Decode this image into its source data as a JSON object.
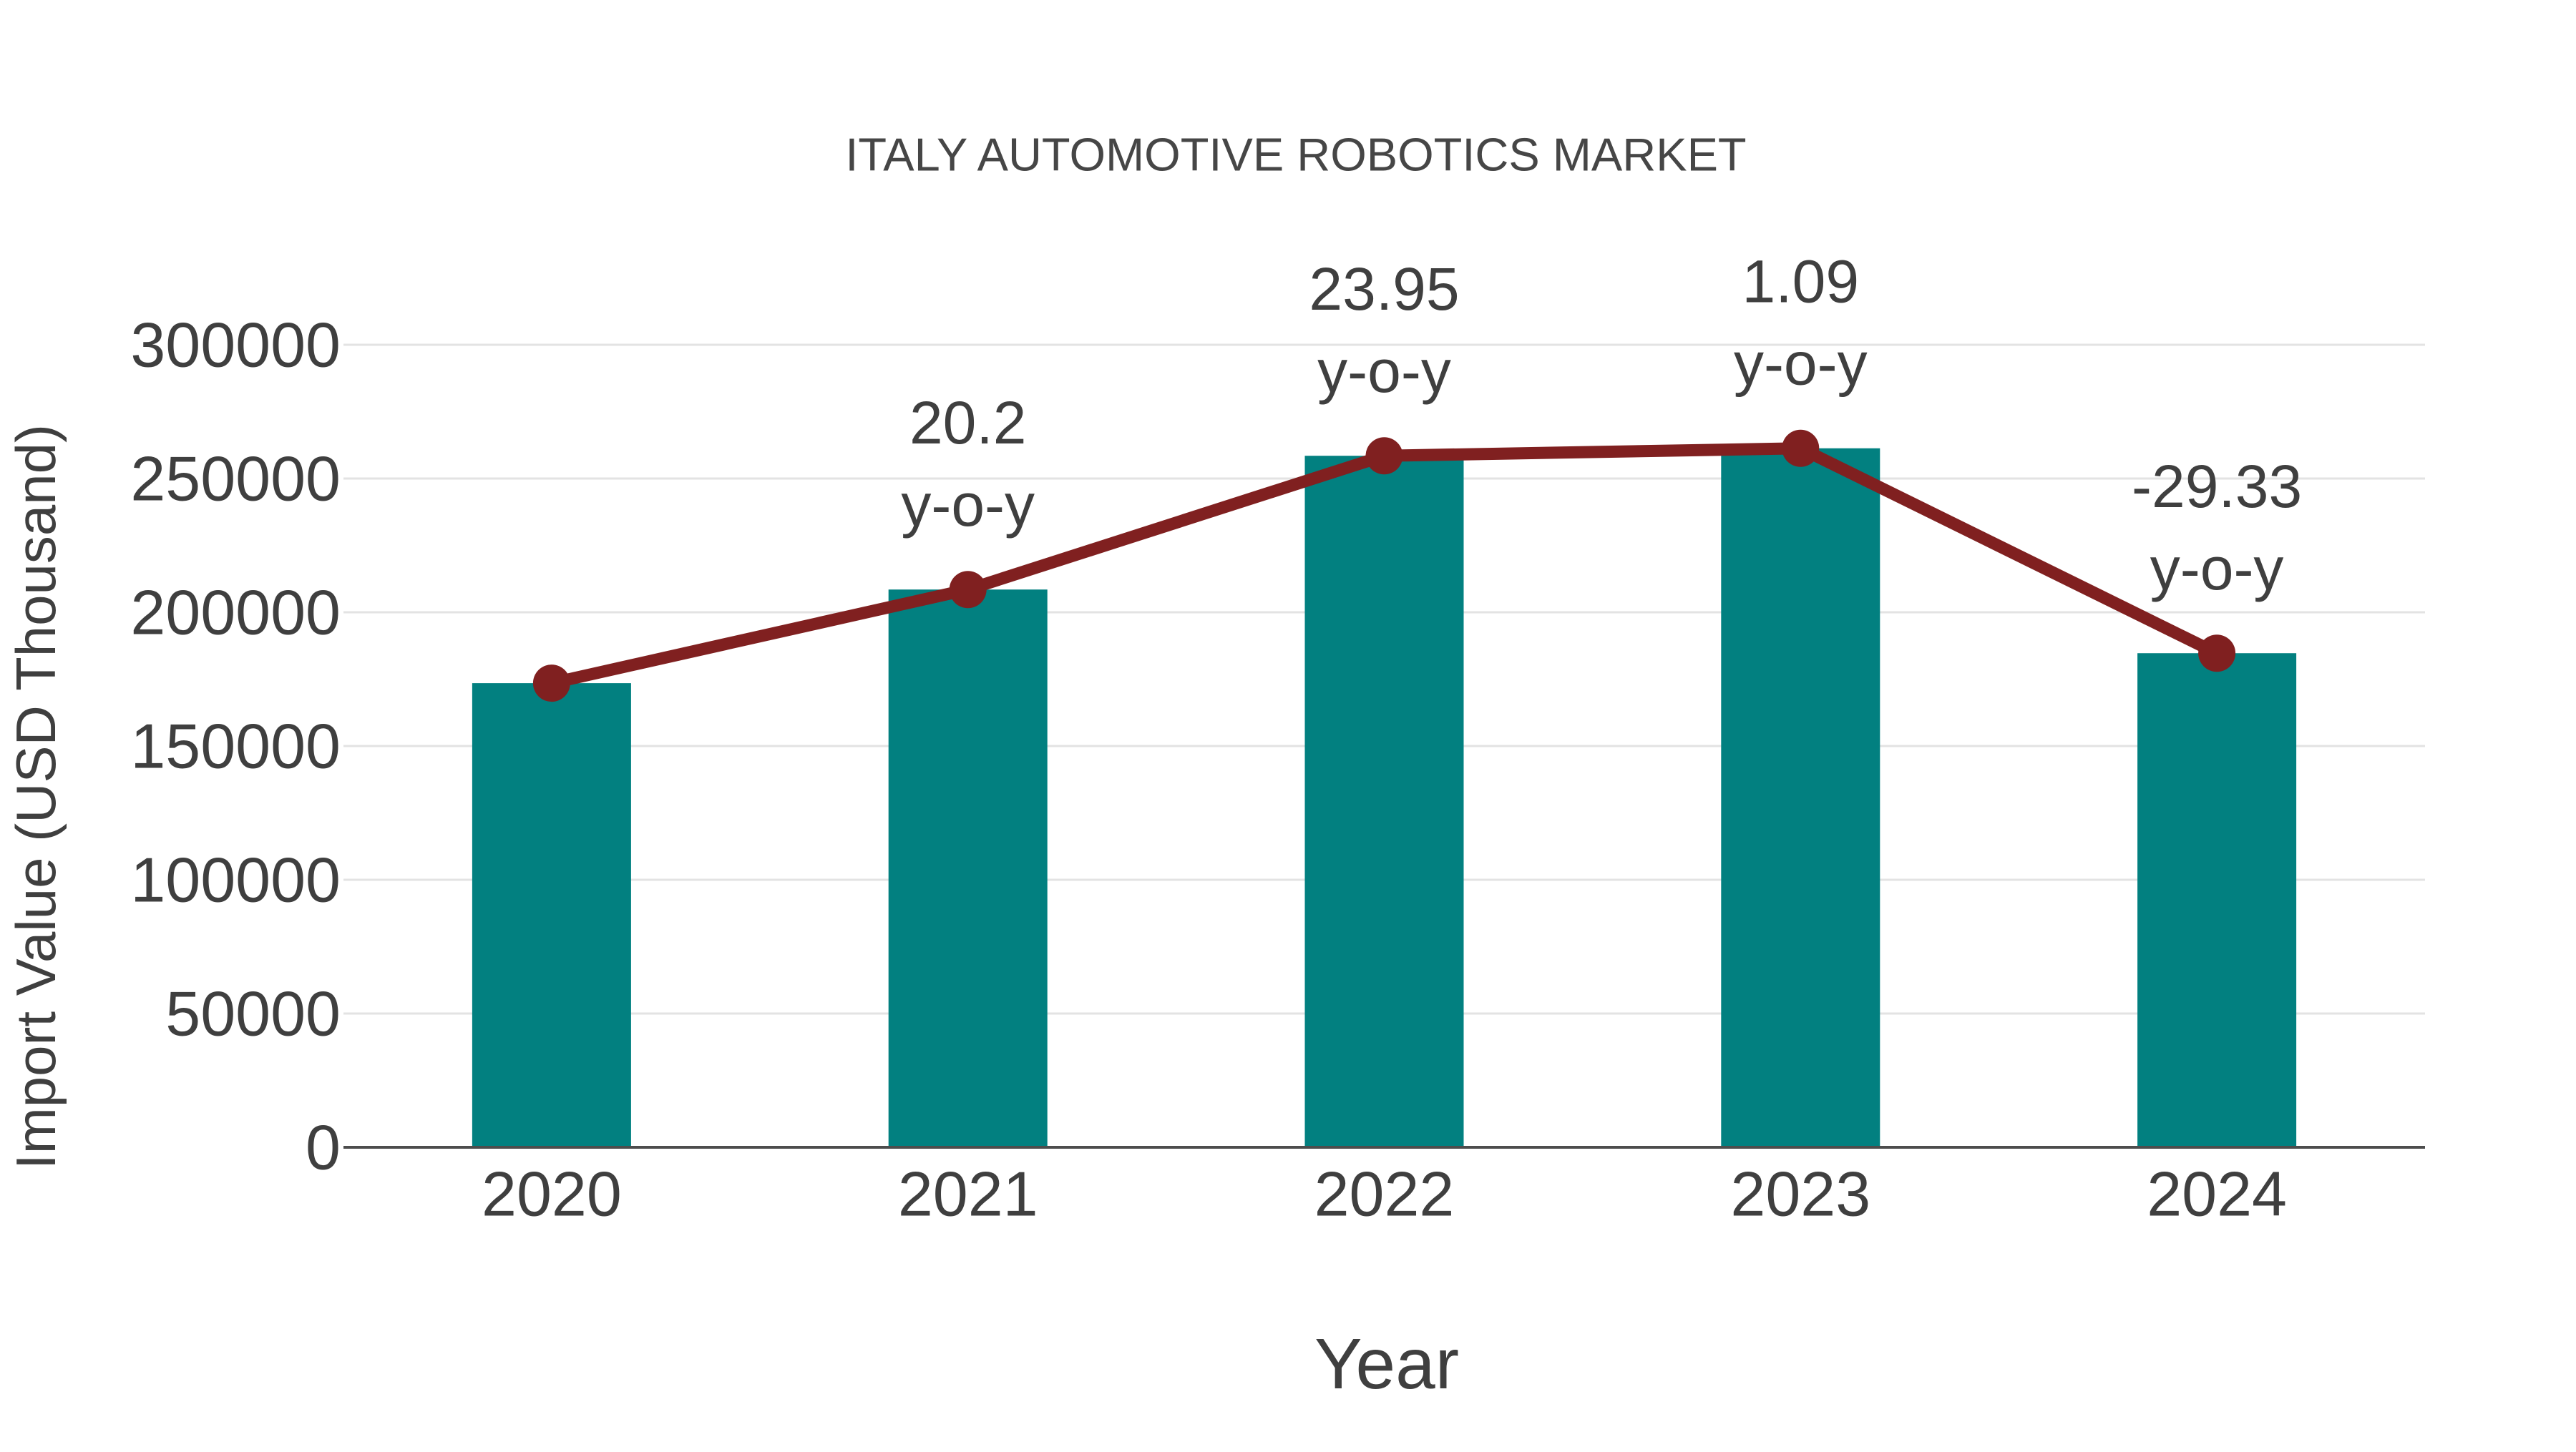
{
  "figure": {
    "background": "#ffffff"
  },
  "chart_data": {
    "type": "bar",
    "title": "ITALY AUTOMOTIVE ROBOTICS MARKET",
    "xlabel": "Year",
    "ylabel": "Import Value (USD Thousand)",
    "categories": [
      "2020",
      "2021",
      "2022",
      "2023",
      "2024"
    ],
    "series": [
      {
        "name": "Import Value (USD Thousand)",
        "type": "bar",
        "values": [
          173500,
          208500,
          258500,
          261300,
          184700
        ],
        "color": "#028080"
      },
      {
        "name": "y-o-y growth (%)",
        "type": "line",
        "values": [
          null,
          20.2,
          23.95,
          1.09,
          -29.33
        ],
        "annotation_labels": [
          "",
          "20.2",
          "23.95",
          "1.09",
          "-29.33"
        ],
        "annotation_suffix": "y-o-y",
        "color": "#802020"
      }
    ],
    "ylim": [
      0,
      300000
    ],
    "yticks": [
      0,
      50000,
      100000,
      150000,
      200000,
      250000,
      300000
    ],
    "ytick_labels": [
      "0",
      "50000",
      "100000",
      "150000",
      "200000",
      "250000",
      "300000"
    ],
    "grid": true,
    "legend_position": "none",
    "colors": {
      "bar": "#028080",
      "line": "#802020",
      "grid": "#e3e3e3",
      "axis_line": "#4d4d4d",
      "tick_text": "#3f3f3f",
      "title_text": "#464646"
    }
  }
}
